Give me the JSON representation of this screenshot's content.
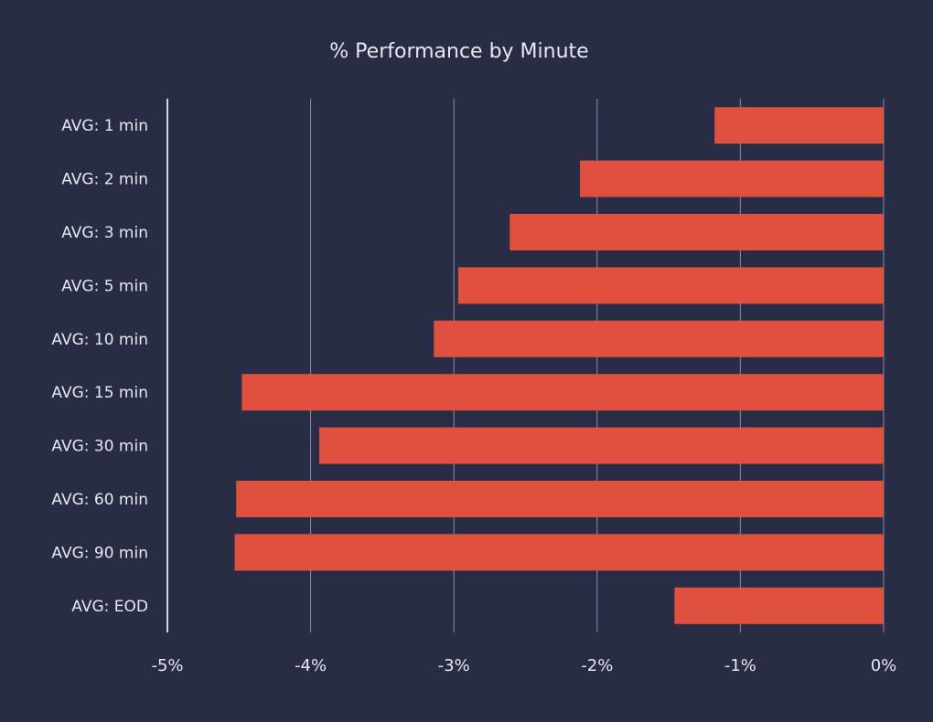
{
  "chart_data": {
    "type": "bar",
    "orientation": "horizontal",
    "title": "% Performance by Minute",
    "xlabel": "",
    "ylabel": "",
    "categories": [
      "AVG: 1 min",
      "AVG: 2 min",
      "AVG: 3 min",
      "AVG: 5 min",
      "AVG: 10 min",
      "AVG: 15 min",
      "AVG: 30 min",
      "AVG: 60 min",
      "AVG: 90 min",
      "AVG: EOD"
    ],
    "values": [
      -1.18,
      -2.12,
      -2.61,
      -2.97,
      -3.14,
      -4.48,
      -3.94,
      -4.52,
      -4.53,
      -1.46
    ],
    "xlim": [
      -5,
      0
    ],
    "xticks": [
      -5,
      -4,
      -3,
      -2,
      -1,
      0
    ],
    "xtick_labels": [
      "-5%",
      "-4%",
      "-3%",
      "-2%",
      "-1%",
      "0%"
    ],
    "grid": "vertical",
    "colors": {
      "bar": "#e0503f",
      "background": "#282c45",
      "grid": "#8a8ea8",
      "text": "#e8e8ee"
    }
  }
}
